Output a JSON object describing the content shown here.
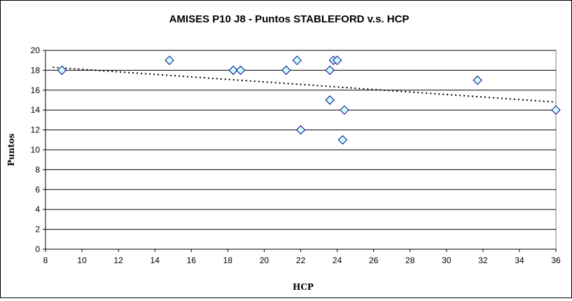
{
  "chart_data": {
    "type": "scatter",
    "title": "AMISES P10 J8 - Puntos STABLEFORD v.s. HCP",
    "xlabel": "HCP",
    "ylabel": "Puntos",
    "xlim": [
      8,
      36
    ],
    "ylim": [
      0,
      20
    ],
    "x_ticks": [
      8,
      10,
      12,
      14,
      16,
      18,
      20,
      22,
      24,
      26,
      28,
      30,
      32,
      34,
      36
    ],
    "y_ticks": [
      0,
      2,
      4,
      6,
      8,
      10,
      12,
      14,
      16,
      18,
      20
    ],
    "grid": "horizontal",
    "legend": "none",
    "series": [
      {
        "marker": "diamond",
        "color": "#ccffff",
        "points": [
          {
            "x": 8.9,
            "y": 18
          },
          {
            "x": 14.8,
            "y": 19
          },
          {
            "x": 18.3,
            "y": 18
          },
          {
            "x": 18.7,
            "y": 18
          },
          {
            "x": 21.2,
            "y": 18
          },
          {
            "x": 21.8,
            "y": 19
          },
          {
            "x": 22.0,
            "y": 12
          },
          {
            "x": 23.6,
            "y": 18
          },
          {
            "x": 23.6,
            "y": 15
          },
          {
            "x": 23.8,
            "y": 19
          },
          {
            "x": 24.0,
            "y": 19
          },
          {
            "x": 24.3,
            "y": 11
          },
          {
            "x": 24.4,
            "y": 14
          },
          {
            "x": 31.7,
            "y": 17
          },
          {
            "x": 36.0,
            "y": 14
          }
        ]
      }
    ],
    "trendline": {
      "style": "dotted",
      "color": "#000000",
      "x_start": 8.4,
      "y_start": 18.3,
      "x_end": 36.0,
      "y_end": 14.8
    },
    "colors": {
      "chart_area": "#ffffff",
      "plot_area": "#ffffff",
      "gridline": "#000000",
      "marker_fill": "#ccffff",
      "marker_edge": "#000080"
    }
  }
}
